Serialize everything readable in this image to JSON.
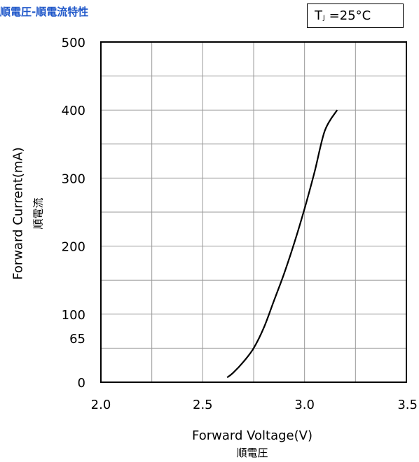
{
  "header": {
    "title": "順電圧-順電流特性"
  },
  "condition": {
    "symbol": "T",
    "subscript": "J",
    "value": "=25°C"
  },
  "chart_data": {
    "type": "line",
    "title": "順電圧-順電流特性",
    "xlabel": "Forward Voltage(V)",
    "xlabel_jp": "順電圧",
    "ylabel": "Forward Current(mA)",
    "ylabel_jp": "順電流",
    "xlim": [
      2.0,
      3.5
    ],
    "ylim": [
      0,
      500
    ],
    "x_ticks": [
      2.0,
      2.5,
      3.0,
      3.5
    ],
    "x_tick_labels": [
      "2.0",
      "2.5",
      "3.0",
      "3.5"
    ],
    "y_ticks": [
      0,
      65,
      100,
      200,
      300,
      400,
      500
    ],
    "y_tick_labels": [
      "0",
      "65",
      "100",
      "200",
      "300",
      "400",
      "500"
    ],
    "x_grid": [
      2.25,
      2.5,
      2.75,
      3.0,
      3.25
    ],
    "y_grid": [
      50,
      100,
      150,
      200,
      250,
      300,
      350,
      400,
      450
    ],
    "grid": true,
    "series": [
      {
        "x": [
          2.62,
          2.65,
          2.7,
          2.75,
          2.8,
          2.85,
          2.9,
          2.95,
          3.0,
          3.05,
          3.1,
          3.16
        ],
        "y": [
          7,
          14,
          30,
          50,
          80,
          120,
          160,
          205,
          255,
          310,
          370,
          400
        ]
      }
    ]
  }
}
